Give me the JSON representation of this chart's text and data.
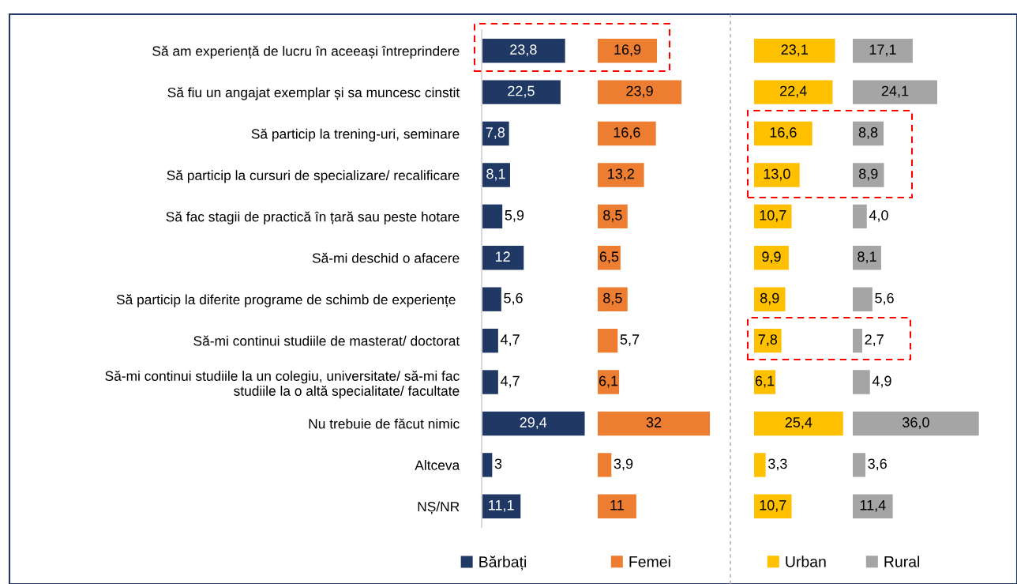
{
  "chart_data": [
    {
      "type": "bar",
      "orientation": "horizontal",
      "legend": "bottom",
      "tick_labels": "y",
      "categories": [
        "Să am experiență de lucru în aceeași întreprindere",
        "Să fiu un angajat exemplar și sa muncesc cinstit",
        "Să particip la trening-uri, seminare",
        "Să particip la cursuri de specializare/ recalificare",
        "Să fac stagii de practică în țară sau peste hotare",
        "Să-mi deschid o afacere",
        "Să particip la diferite programe de schimb de experiențe ",
        "Să-mi continui studiile de masterat/ doctorat",
        "Să-mi continui studiile la un colegiu, universitate/ să-mi fac\nstudiile la o altă specialitate/ facultate",
        "Nu trebuie de făcut nimic",
        "Altceva",
        "NȘ/NR"
      ],
      "series": [
        {
          "name": "Bărbați",
          "color": "#203864",
          "values": [
            23.8,
            22.5,
            7.8,
            8.1,
            5.9,
            12,
            5.6,
            4.7,
            4.7,
            29.4,
            3,
            11.1
          ],
          "value_labels": [
            "23,8",
            "22,5",
            "7,8",
            "8,1",
            "5,9",
            "12",
            "5,6",
            "4,7",
            "4,7",
            "29,4",
            "3",
            "11,1"
          ]
        }
      ]
    },
    {
      "type": "bar",
      "orientation": "horizontal",
      "legend": "bottom",
      "tick_labels": false,
      "categories": [
        null,
        null,
        null,
        null,
        null,
        null,
        null,
        null,
        null,
        null,
        null,
        null
      ],
      "series": [
        {
          "name": "Femei",
          "color": "#ed7d31",
          "values": [
            16.9,
            23.9,
            16.6,
            13.2,
            8.5,
            6.5,
            8.5,
            5.7,
            6.1,
            32,
            3.9,
            11
          ],
          "value_labels": [
            "16,9",
            "23,9",
            "16,6",
            "13,2",
            "8,5",
            "6,5",
            "8,5",
            "5,7",
            "6,1",
            "32",
            "3,9",
            "11"
          ]
        }
      ]
    },
    {
      "type": "bar",
      "orientation": "horizontal",
      "legend": "bottom",
      "tick_labels": false,
      "categories": [
        null,
        null,
        null,
        null,
        null,
        null,
        null,
        null,
        null,
        null,
        null,
        null
      ],
      "series": [
        {
          "name": "Urban",
          "color": "#ffc000",
          "values": [
            23.1,
            22.4,
            16.6,
            13.0,
            10.7,
            9.9,
            8.9,
            7.8,
            6.1,
            25.4,
            3.3,
            10.7
          ],
          "value_labels": [
            "23,1",
            "22,4",
            "16,6",
            "13,0",
            "10,7",
            "9,9",
            "8,9",
            "7,8",
            "6,1",
            "25,4",
            "3,3",
            "10,7"
          ]
        }
      ]
    },
    {
      "type": "bar",
      "orientation": "horizontal",
      "legend": "bottom",
      "tick_labels": false,
      "categories": [
        null,
        null,
        null,
        null,
        null,
        null,
        null,
        null,
        null,
        null,
        null,
        null
      ],
      "series": [
        {
          "name": "Rural",
          "color": "#a5a5a5",
          "values": [
            17.1,
            24.1,
            8.8,
            8.9,
            4.0,
            8.1,
            5.6,
            2.7,
            4.9,
            36.0,
            3.6,
            11.4
          ],
          "value_labels": [
            "17,1",
            "24,1",
            "8,8",
            "8,9",
            "4,0",
            "8,1",
            "5,6",
            "2,7",
            "4,9",
            "36,0",
            "3,6",
            "11,4"
          ]
        }
      ]
    }
  ]
}
